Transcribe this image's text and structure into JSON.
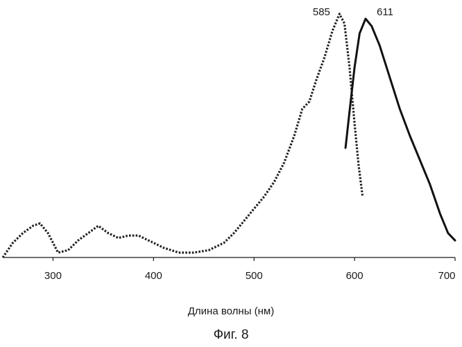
{
  "chart_data": {
    "type": "line",
    "xlabel": "Длина волны (нм)",
    "caption": "Фиг. 8",
    "xlim": [
      250,
      700
    ],
    "ylim": [
      0,
      1.0
    ],
    "x_ticks": [
      300,
      400,
      500,
      600,
      700
    ],
    "grid": false,
    "legend": "none",
    "series": [
      {
        "style": "dotted",
        "color": "#222222",
        "x": [
          250,
          260,
          270,
          280,
          287,
          295,
          305,
          315,
          325,
          335,
          345,
          355,
          365,
          375,
          385,
          395,
          410,
          425,
          440,
          455,
          470,
          480,
          490,
          500,
          510,
          520,
          530,
          540,
          548,
          555,
          562,
          570,
          578,
          585,
          590,
          595,
          600,
          604,
          608
        ],
        "y": [
          0.0,
          0.06,
          0.1,
          0.13,
          0.14,
          0.1,
          0.02,
          0.03,
          0.07,
          0.1,
          0.13,
          0.1,
          0.08,
          0.09,
          0.09,
          0.07,
          0.04,
          0.02,
          0.02,
          0.03,
          0.06,
          0.1,
          0.15,
          0.2,
          0.25,
          0.31,
          0.39,
          0.5,
          0.61,
          0.64,
          0.73,
          0.82,
          0.93,
          1.0,
          0.96,
          0.78,
          0.55,
          0.38,
          0.25
        ]
      },
      {
        "style": "solid",
        "color": "#111111",
        "x": [
          591,
          595,
          600,
          605,
          611,
          617,
          625,
          635,
          645,
          655,
          665,
          675,
          685,
          693,
          700
        ],
        "y": [
          0.45,
          0.6,
          0.78,
          0.92,
          0.98,
          0.95,
          0.87,
          0.74,
          0.61,
          0.5,
          0.4,
          0.3,
          0.18,
          0.1,
          0.07
        ]
      }
    ],
    "annotations": [
      {
        "text": "585",
        "x": 585
      },
      {
        "text": "611",
        "x": 611
      }
    ]
  }
}
